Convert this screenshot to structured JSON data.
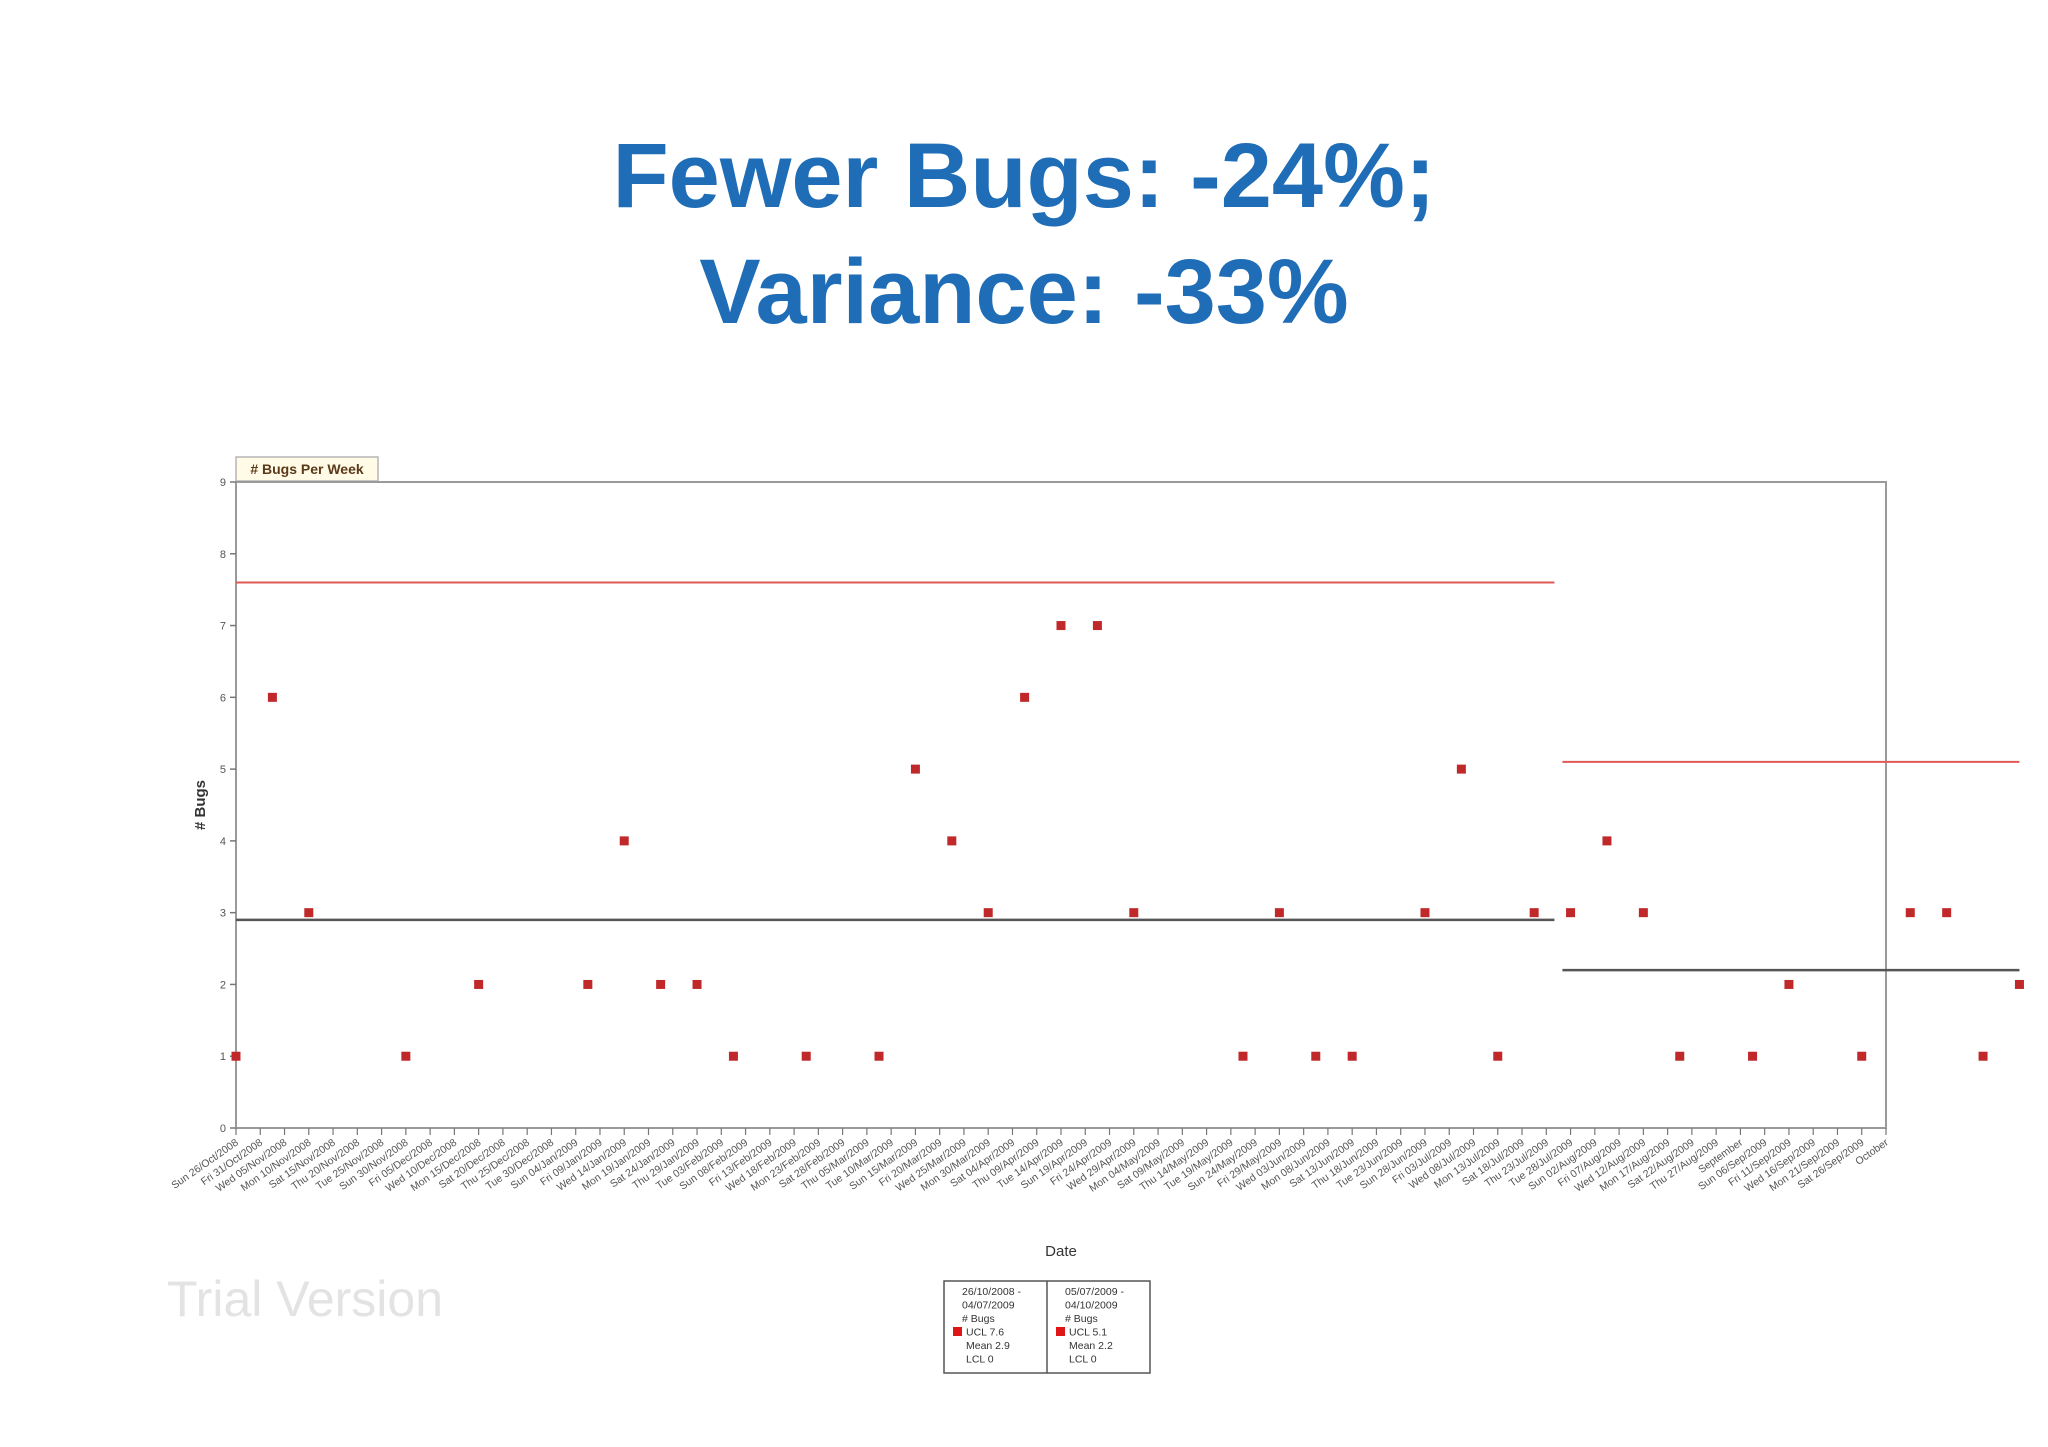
{
  "slide": {
    "title_line1": "Fewer Bugs: -24%;",
    "title_line2": "Variance: -33%"
  },
  "watermark": "Trial Version",
  "chart_data": {
    "type": "scatter",
    "tab_label": "# Bugs Per Week",
    "xlabel": "Date",
    "ylabel": "# Bugs",
    "ylim": [
      0,
      9
    ],
    "yticks": [
      "0",
      "1",
      "2",
      "3",
      "4",
      "5",
      "6",
      "7",
      "8",
      "9"
    ],
    "grid": false,
    "legend_position": "bottom-center",
    "colors": {
      "points": "#c0282a",
      "ucl": "#e05a55",
      "mean": "#555555",
      "frame": "#9a9a9a"
    },
    "categories": [
      "Sun 26/Oct/2008",
      "Fri 31/Oct/2008",
      "Wed 05/Nov/2008",
      "Mon 10/Nov/2008",
      "Sat 15/Nov/2008",
      "Thu 20/Nov/2008",
      "Tue 25/Nov/2008",
      "Sun 30/Nov/2008",
      "Fri 05/Dec/2008",
      "Wed 10/Dec/2008",
      "Mon 15/Dec/2008",
      "Sat 20/Dec/2008",
      "Thu 25/Dec/2008",
      "Tue 30/Dec/2008",
      "Sun 04/Jan/2009",
      "Fri 09/Jan/2009",
      "Wed 14/Jan/2009",
      "Mon 19/Jan/2009",
      "Sat 24/Jan/2009",
      "Thu 29/Jan/2009",
      "Tue 03/Feb/2009",
      "Sun 08/Feb/2009",
      "Fri 13/Feb/2009",
      "Wed 18/Feb/2009",
      "Mon 23/Feb/2009",
      "Sat 28/Feb/2009",
      "Thu 05/Mar/2009",
      "Tue 10/Mar/2009",
      "Sun 15/Mar/2009",
      "Fri 20/Mar/2009",
      "Wed 25/Mar/2009",
      "Mon 30/Mar/2009",
      "Sat 04/Apr/2009",
      "Thu 09/Apr/2009",
      "Tue 14/Apr/2009",
      "Sun 19/Apr/2009",
      "Fri 24/Apr/2009",
      "Wed 29/Apr/2009",
      "Mon 04/May/2009",
      "Sat 09/May/2009",
      "Thu 14/May/2009",
      "Tue 19/May/2009",
      "Sun 24/May/2009",
      "Fri 29/May/2009",
      "Wed 03/Jun/2009",
      "Mon 08/Jun/2009",
      "Sat 13/Jun/2009",
      "Thu 18/Jun/2009",
      "Tue 23/Jun/2009",
      "Sun 28/Jun/2009",
      "Fri 03/Jul/2009",
      "Wed 08/Jul/2009",
      "Mon 13/Jul/2009",
      "Sat 18/Jul/2009",
      "Thu 23/Jul/2009",
      "Tue 28/Jul/2009",
      "Sun 02/Aug/2009",
      "Fri 07/Aug/2009",
      "Wed 12/Aug/2009",
      "Mon 17/Aug/2009",
      "Sat 22/Aug/2009",
      "Thu 27/Aug/2009",
      "September",
      "Sun 06/Sep/2009",
      "Fri 11/Sep/2009",
      "Wed 16/Sep/2009",
      "Mon 21/Sep/2009",
      "Sat 26/Sep/2009",
      "October"
    ],
    "points": [
      {
        "x": 0,
        "y": 1
      },
      {
        "x": 1.5,
        "y": 6
      },
      {
        "x": 3,
        "y": 3
      },
      {
        "x": 7,
        "y": 1
      },
      {
        "x": 10,
        "y": 2
      },
      {
        "x": 14.5,
        "y": 2
      },
      {
        "x": 16,
        "y": 4
      },
      {
        "x": 17.5,
        "y": 2
      },
      {
        "x": 19,
        "y": 2
      },
      {
        "x": 20.5,
        "y": 1
      },
      {
        "x": 23.5,
        "y": 1
      },
      {
        "x": 26.5,
        "y": 1
      },
      {
        "x": 28,
        "y": 5
      },
      {
        "x": 29.5,
        "y": 4
      },
      {
        "x": 31,
        "y": 3
      },
      {
        "x": 32.5,
        "y": 6
      },
      {
        "x": 34,
        "y": 7
      },
      {
        "x": 35.5,
        "y": 7
      },
      {
        "x": 37,
        "y": 3
      },
      {
        "x": 41.5,
        "y": 1
      },
      {
        "x": 43,
        "y": 3
      },
      {
        "x": 44.5,
        "y": 1
      },
      {
        "x": 46,
        "y": 1
      },
      {
        "x": 49,
        "y": 3
      },
      {
        "x": 50.5,
        "y": 5
      },
      {
        "x": 52,
        "y": 1
      },
      {
        "x": 53.5,
        "y": 3
      },
      {
        "x": 55,
        "y": 3
      },
      {
        "x": 56.5,
        "y": 4
      },
      {
        "x": 58,
        "y": 3
      },
      {
        "x": 59.5,
        "y": 1
      },
      {
        "x": 62.5,
        "y": 1
      },
      {
        "x": 64,
        "y": 2
      },
      {
        "x": 67,
        "y": 1
      },
      {
        "x": 69,
        "y": 3
      },
      {
        "x": 70.5,
        "y": 3
      },
      {
        "x": 72,
        "y": 1
      },
      {
        "x": 73.5,
        "y": 2
      }
    ],
    "control_segments": [
      {
        "period": "26/10/2008 - 04/07/2009",
        "series_name": "# Bugs",
        "ucl": 7.6,
        "mean": 2.9,
        "lcl": 0,
        "x_start": 0,
        "x_end": 54.5,
        "legend_lines": [
          "26/10/2008 -",
          "04/07/2009",
          "# Bugs",
          "UCL 7.6",
          "Mean 2.9",
          "LCL 0"
        ]
      },
      {
        "period": "05/07/2009 - 04/10/2009",
        "series_name": "# Bugs",
        "ucl": 5.1,
        "mean": 2.2,
        "lcl": 0,
        "x_start": 54.5,
        "x_end": 73.5,
        "legend_lines": [
          "05/07/2009 -",
          "04/10/2009",
          "# Bugs",
          "UCL 5.1",
          "Mean 2.2",
          "LCL 0"
        ]
      }
    ]
  }
}
